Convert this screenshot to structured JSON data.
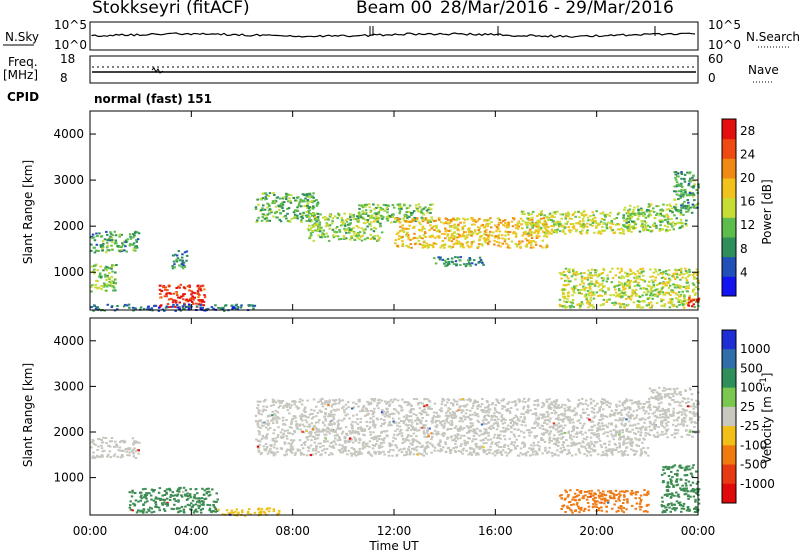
{
  "header": {
    "station": "Stokkseyri (fitACF)",
    "beam": "Beam 00",
    "dates": "28/Mar/2016 - 29/Mar/2016"
  },
  "panels": {
    "noise": {
      "left_label": "N.Sky",
      "left_ticks": [
        "10^5",
        "10^0"
      ],
      "right_ticks": [
        "10^5",
        "10^0"
      ],
      "right_label": "N.Search"
    },
    "freq": {
      "left_label_1": "Freq.",
      "left_label_2": "[MHz]",
      "left_ticks": [
        "18",
        "8"
      ],
      "right_ticks": [
        "60",
        "0"
      ],
      "right_label": "Nave"
    },
    "cpid": {
      "label": "CPID",
      "value": "normal (fast) 151"
    }
  },
  "colors": {
    "power_scale": [
      "#1414f0",
      "#2050b8",
      "#2f8f5a",
      "#5cbc4c",
      "#c8dc36",
      "#f2c21c",
      "#f08a14",
      "#ee4a12",
      "#e60f0f"
    ],
    "velocity_scale": [
      "#1c2ed4",
      "#2f6ea8",
      "#2f8f5a",
      "#7ac850",
      "#c8c8c0",
      "#f0c018",
      "#f07a10",
      "#e83a12",
      "#e00a0a"
    ],
    "velocity_main": "#c6c6be",
    "velocity_green": "#3c8c52",
    "velocity_orange": "#ef7a14"
  },
  "chart_data": [
    {
      "type": "heatmap",
      "panel": "power",
      "xlabel": "",
      "ylabel": "Slant Range [km]",
      "x_ticks": [
        "00:00",
        "04:00",
        "08:00",
        "12:00",
        "16:00",
        "20:00",
        "00:00"
      ],
      "x_range_hours": [
        0,
        24
      ],
      "y_ticks": [
        1000,
        2000,
        3000,
        4000
      ],
      "y_range_km": [
        180,
        4500
      ],
      "colorbar": {
        "label": "Power [dB]",
        "ticks": [
          4,
          8,
          12,
          16,
          20,
          24,
          28
        ],
        "range": [
          0,
          30
        ]
      },
      "regions": [
        {
          "t0": 0.0,
          "t1": 1.9,
          "r0": 1450,
          "r1": 1900,
          "level": 10
        },
        {
          "t0": 0.0,
          "t1": 1.0,
          "r0": 600,
          "r1": 1200,
          "level": 13
        },
        {
          "t0": 3.2,
          "t1": 3.8,
          "r0": 1100,
          "r1": 1500,
          "level": 8
        },
        {
          "t0": 2.7,
          "t1": 4.5,
          "r0": 250,
          "r1": 750,
          "level": 27
        },
        {
          "t0": 0.0,
          "t1": 6.5,
          "r0": 180,
          "r1": 320,
          "level": 6
        },
        {
          "t0": 6.5,
          "t1": 9.0,
          "r0": 2100,
          "r1": 2750,
          "level": 11
        },
        {
          "t0": 8.5,
          "t1": 11.5,
          "r0": 1700,
          "r1": 2300,
          "level": 13
        },
        {
          "t0": 10.5,
          "t1": 13.5,
          "r0": 2100,
          "r1": 2500,
          "level": 12
        },
        {
          "t0": 12.0,
          "t1": 18.0,
          "r0": 1550,
          "r1": 2200,
          "level": 18
        },
        {
          "t0": 17.0,
          "t1": 21.5,
          "r0": 1850,
          "r1": 2350,
          "level": 15
        },
        {
          "t0": 21.0,
          "t1": 23.5,
          "r0": 1900,
          "r1": 2500,
          "level": 13
        },
        {
          "t0": 23.0,
          "t1": 24.0,
          "r0": 2300,
          "r1": 3200,
          "level": 10
        },
        {
          "t0": 13.5,
          "t1": 15.5,
          "r0": 1150,
          "r1": 1350,
          "level": 8
        },
        {
          "t0": 18.5,
          "t1": 24.0,
          "r0": 250,
          "r1": 1100,
          "level": 15
        },
        {
          "t0": 23.5,
          "t1": 24.0,
          "r0": 250,
          "r1": 500,
          "level": 28
        }
      ]
    },
    {
      "type": "heatmap",
      "panel": "velocity",
      "xlabel": "Time UT",
      "ylabel": "Slant Range [km]",
      "x_ticks": [
        "00:00",
        "04:00",
        "08:00",
        "12:00",
        "16:00",
        "20:00",
        "00:00"
      ],
      "x_range_hours": [
        0,
        24
      ],
      "y_ticks": [
        1000,
        2000,
        3000,
        4000
      ],
      "y_range_km": [
        180,
        4500
      ],
      "colorbar": {
        "label": "Velocity [m s^-1]",
        "ticks": [
          "1000",
          "500",
          "100",
          "25",
          "-25",
          "-100",
          "-500",
          "-1000"
        ]
      },
      "regions": [
        {
          "t0": 0.0,
          "t1": 1.9,
          "r0": 1450,
          "r1": 1900,
          "v": 10
        },
        {
          "t0": 1.5,
          "t1": 5.0,
          "r0": 250,
          "r1": 800,
          "v": 200
        },
        {
          "t0": 5.0,
          "t1": 7.5,
          "r0": 180,
          "r1": 350,
          "v": -50
        },
        {
          "t0": 6.5,
          "t1": 22.0,
          "r0": 1500,
          "r1": 2750,
          "v": 0
        },
        {
          "t0": 22.0,
          "t1": 24.0,
          "r0": 1900,
          "r1": 3000,
          "v": 0
        },
        {
          "t0": 18.5,
          "t1": 22.0,
          "r0": 250,
          "r1": 750,
          "v": -300
        },
        {
          "t0": 22.5,
          "t1": 24.0,
          "r0": 250,
          "r1": 1300,
          "v": 200
        }
      ]
    }
  ]
}
